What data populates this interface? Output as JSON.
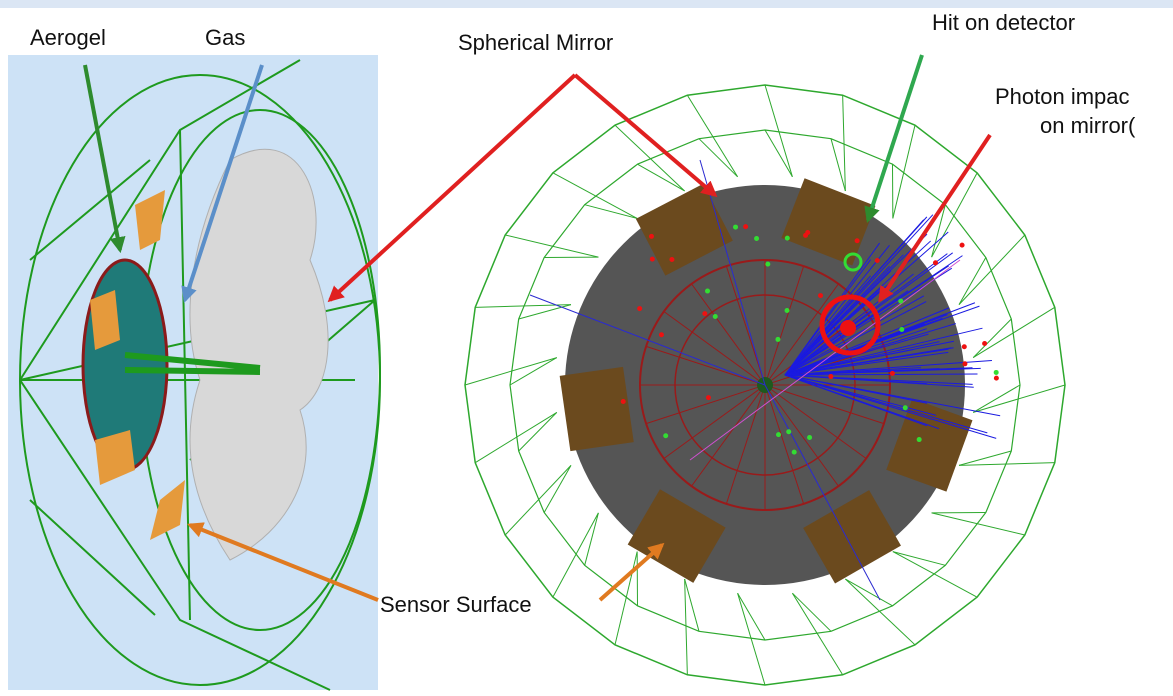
{
  "labels": {
    "aerogel": "Aerogel",
    "gas": "Gas",
    "spherical_mirror": "Spherical Mirror",
    "hit_on_detector": "Hit on detector",
    "photon_impact_line1": "Photon impac",
    "photon_impact_line2": "on mirror(",
    "sensor_surface": "Sensor Surface"
  }
}
